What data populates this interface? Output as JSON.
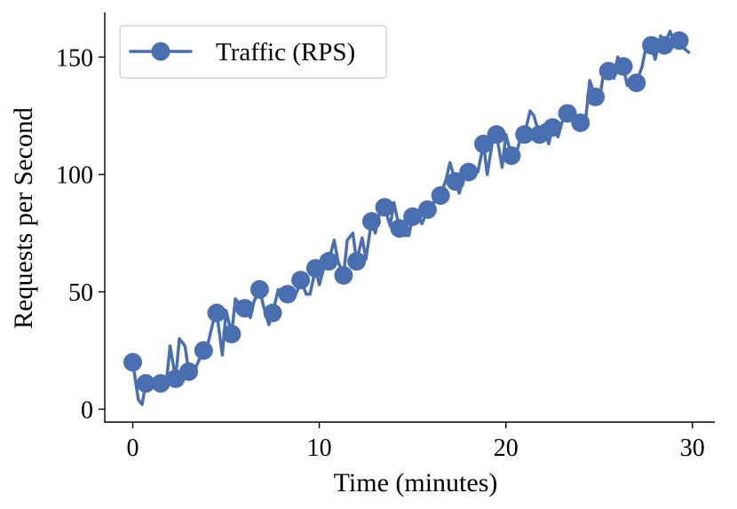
{
  "chart_data": {
    "type": "line",
    "xlabel": "Time (minutes)",
    "ylabel": "Requests per Second",
    "xlim": [
      -1.5,
      31.2
    ],
    "ylim": [
      -5.5,
      169
    ],
    "xticks": [
      0,
      10,
      20,
      30
    ],
    "yticks": [
      0,
      50,
      100,
      150
    ],
    "grid": false,
    "legend_position": "top-left",
    "colors": {
      "series": "#4a6fb0"
    },
    "series": [
      {
        "name": "Traffic (RPS)",
        "marker_every": 3,
        "x": [
          0,
          0.3,
          0.5,
          0.7,
          1.0,
          1.3,
          1.5,
          1.8,
          2.0,
          2.3,
          2.5,
          2.8,
          3.0,
          3.3,
          3.5,
          3.8,
          4.0,
          4.3,
          4.5,
          4.8,
          5.0,
          5.3,
          5.5,
          5.8,
          6.0,
          6.3,
          6.5,
          6.8,
          7.0,
          7.3,
          7.5,
          7.8,
          8.0,
          8.3,
          8.5,
          8.8,
          9.0,
          9.3,
          9.5,
          9.8,
          10.0,
          10.3,
          10.5,
          10.8,
          11.0,
          11.3,
          11.5,
          11.8,
          12.0,
          12.3,
          12.5,
          12.8,
          13.0,
          13.3,
          13.5,
          13.8,
          14.0,
          14.3,
          14.5,
          14.8,
          15.0,
          15.3,
          15.5,
          15.8,
          16.0,
          16.3,
          16.5,
          16.8,
          17.0,
          17.3,
          17.5,
          17.8,
          18.0,
          18.3,
          18.5,
          18.8,
          19.0,
          19.3,
          19.5,
          19.8,
          20.0,
          20.3,
          20.5,
          20.8,
          21.0,
          21.3,
          21.5,
          21.8,
          22.0,
          22.3,
          22.5,
          22.8,
          23.0,
          23.3,
          23.5,
          23.8,
          24.0,
          24.3,
          24.5,
          24.8,
          25.0,
          25.3,
          25.5,
          25.8,
          26.0,
          26.3,
          26.5,
          26.8,
          27.0,
          27.3,
          27.5,
          27.8,
          28.0,
          28.3,
          28.5,
          28.8,
          29.0,
          29.3,
          29.5,
          29.8
        ],
        "values": [
          20,
          4,
          2,
          11,
          12,
          13,
          11,
          11,
          27,
          13,
          30,
          27,
          16,
          16,
          20,
          25,
          27,
          37,
          41,
          23,
          42,
          32,
          47,
          44,
          43,
          39,
          46,
          51,
          44,
          36,
          41,
          51,
          50,
          49,
          46,
          50,
          55,
          49,
          49,
          60,
          53,
          62,
          63,
          72,
          63,
          57,
          72,
          75,
          63,
          73,
          64,
          80,
          75,
          86,
          86,
          78,
          88,
          77,
          74,
          74,
          82,
          83,
          79,
          85,
          84,
          93,
          91,
          98,
          105,
          97,
          92,
          101,
          101,
          102,
          101,
          113,
          100,
          115,
          117,
          103,
          117,
          108,
          107,
          116,
          117,
          127,
          125,
          117,
          121,
          113,
          120,
          116,
          122,
          126,
          129,
          122,
          122,
          125,
          140,
          133,
          131,
          146,
          144,
          141,
          150,
          146,
          138,
          141,
          139,
          146,
          154,
          155,
          149,
          159,
          155,
          161,
          157,
          157,
          154,
          152
        ]
      }
    ]
  }
}
